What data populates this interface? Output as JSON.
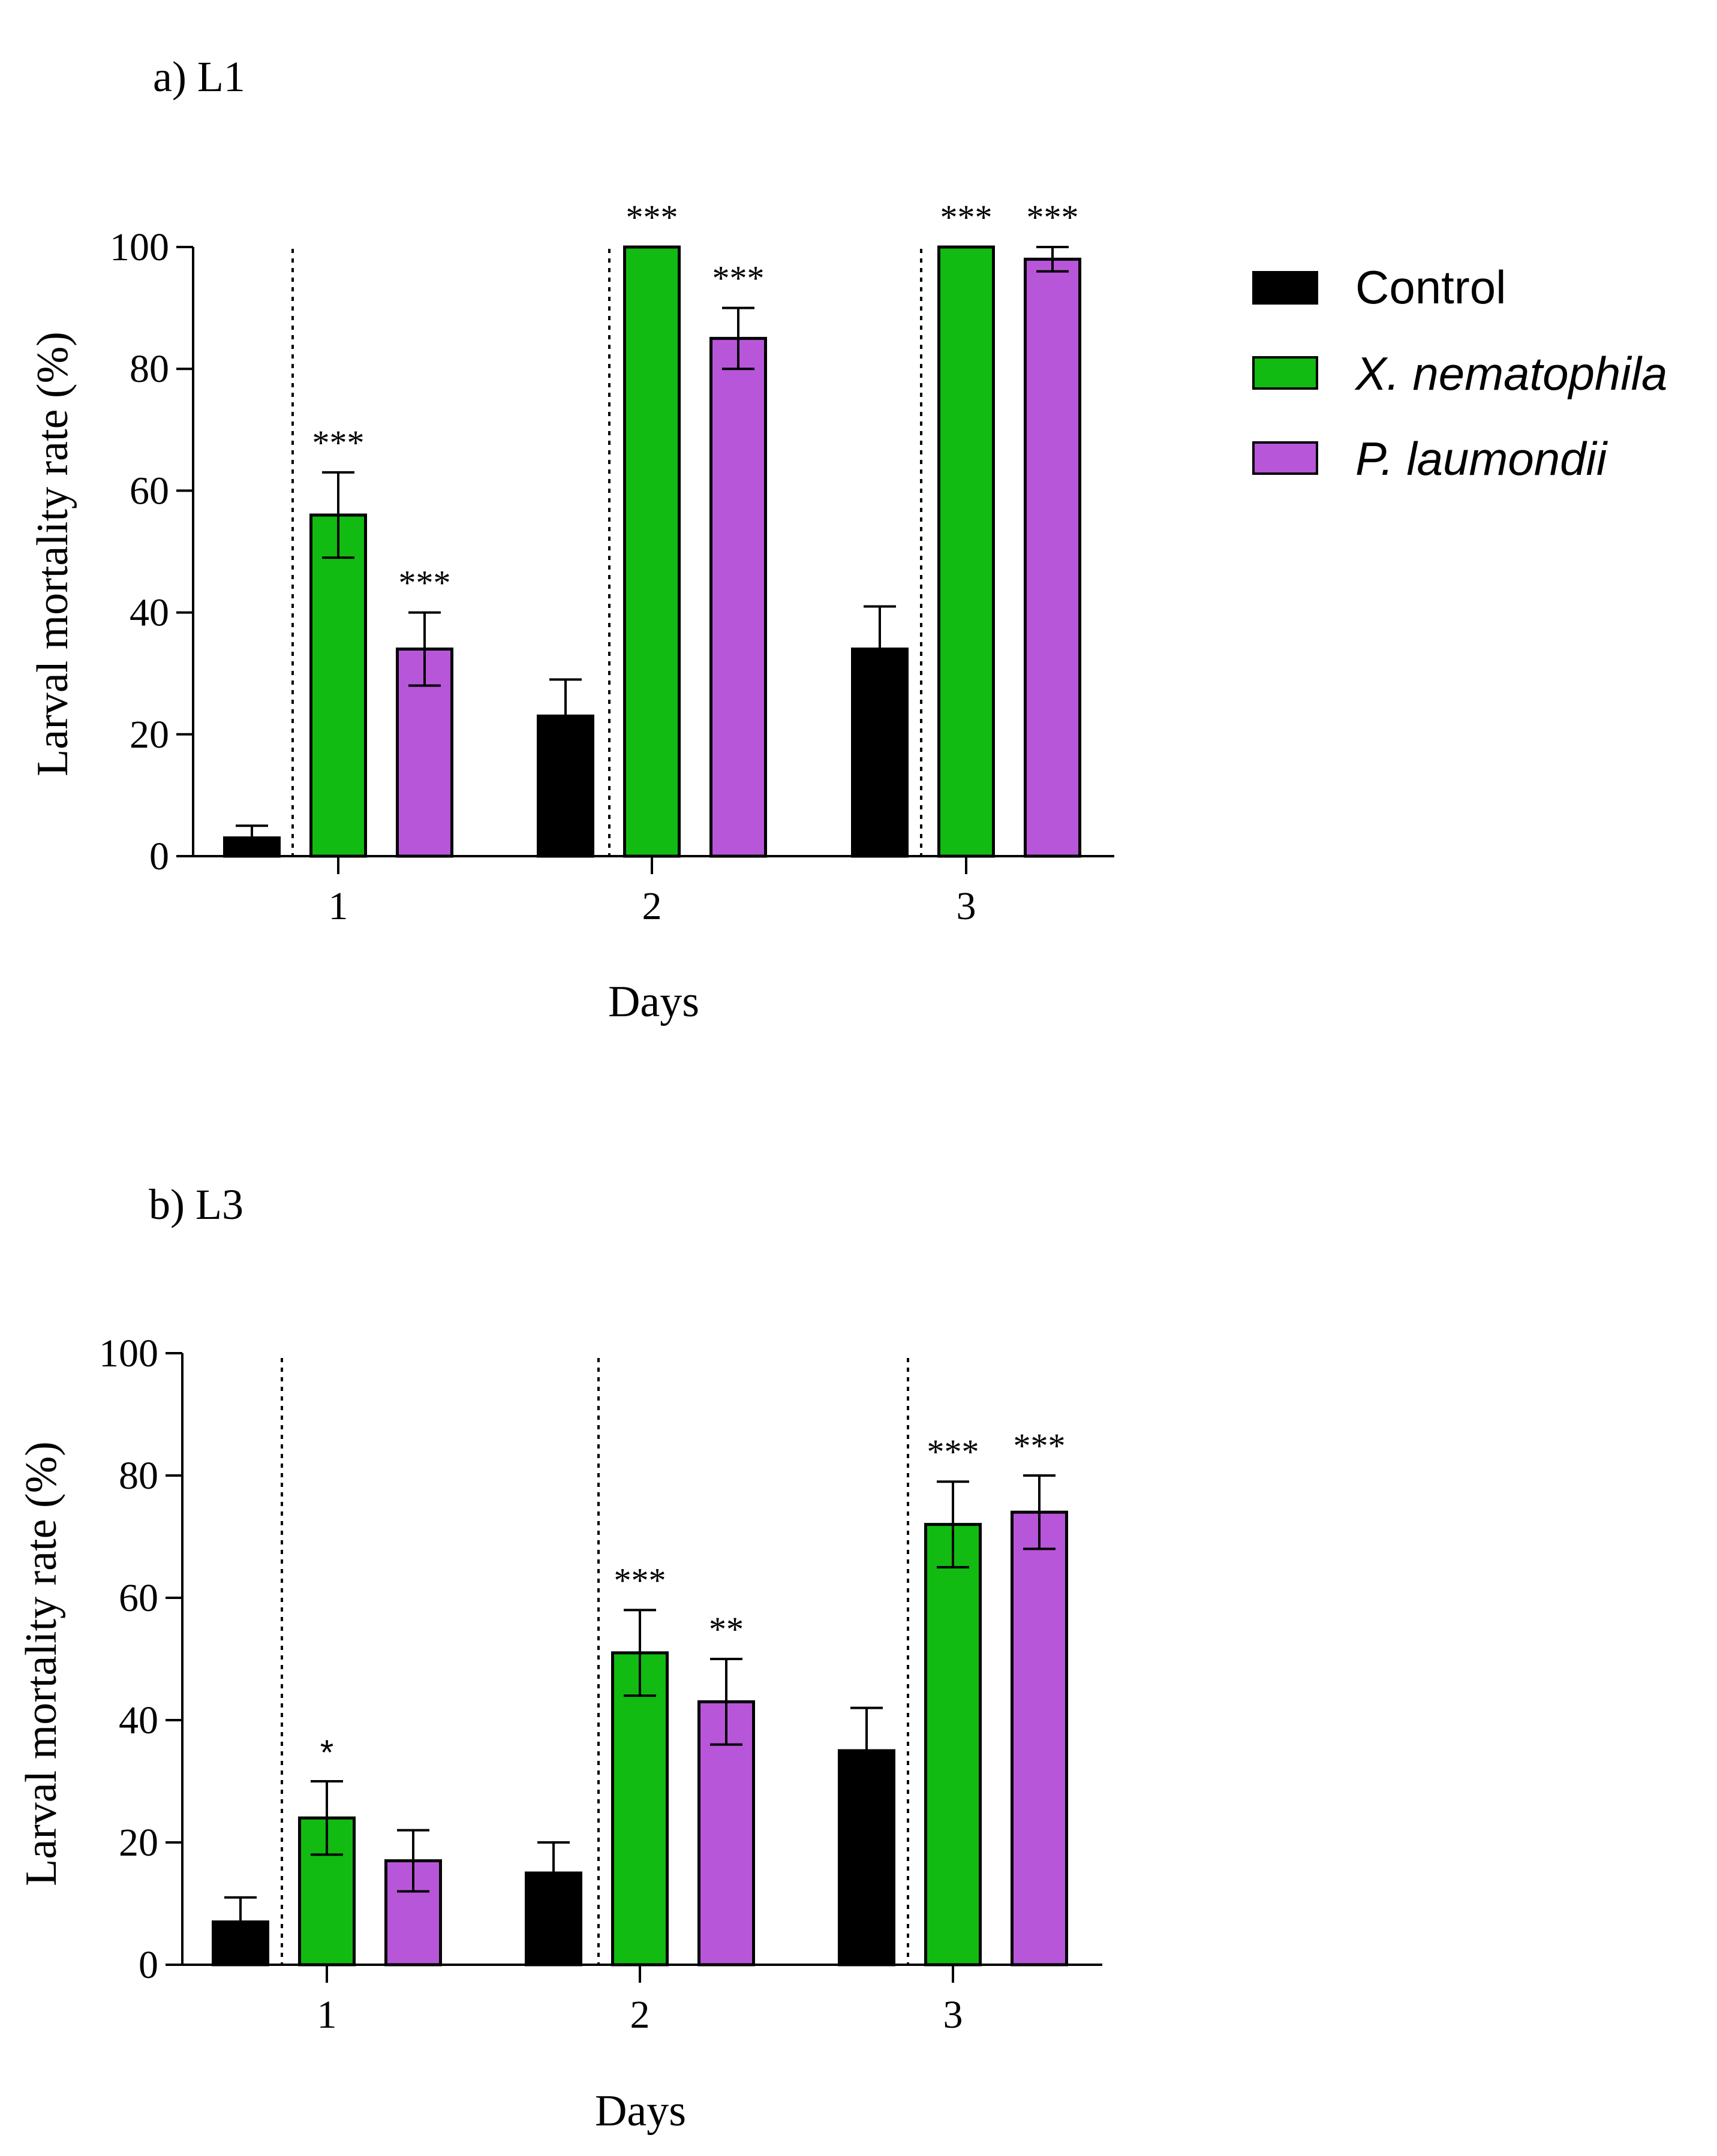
{
  "legend": {
    "items": [
      {
        "label": "Control",
        "color": "#000000",
        "italic": false
      },
      {
        "label": "X. nematophila",
        "color": "#11bb11",
        "italic": true
      },
      {
        "label": "P. laumondii",
        "color": "#b856d9",
        "italic": true
      }
    ]
  },
  "chart_data": [
    {
      "type": "bar",
      "title": "a) L1",
      "xlabel": "Days",
      "ylabel": "Larval mortality rate (%)",
      "ylim": [
        0,
        100
      ],
      "yticks": [
        0,
        20,
        40,
        60,
        80,
        100
      ],
      "categories": [
        "1",
        "2",
        "3"
      ],
      "series": [
        {
          "name": "Control",
          "color": "#000000",
          "values": [
            3,
            23,
            34
          ],
          "errors": [
            2,
            6,
            7
          ],
          "significance": [
            "",
            "",
            ""
          ]
        },
        {
          "name": "X. nematophila",
          "color": "#11bb11",
          "values": [
            56,
            100,
            100
          ],
          "errors": [
            7,
            0,
            0
          ],
          "significance": [
            "***",
            "***",
            "***"
          ]
        },
        {
          "name": "P. laumondii",
          "color": "#b856d9",
          "values": [
            34,
            85,
            98
          ],
          "errors": [
            6,
            5,
            2
          ],
          "significance": [
            "***",
            "***",
            "***"
          ]
        }
      ],
      "separators": "dotted line before each treatment group"
    },
    {
      "type": "bar",
      "title": "b) L3",
      "xlabel": "Days",
      "ylabel": "Larval mortality rate (%)",
      "ylim": [
        0,
        100
      ],
      "yticks": [
        0,
        20,
        40,
        60,
        80,
        100
      ],
      "categories": [
        "1",
        "2",
        "3"
      ],
      "series": [
        {
          "name": "Control",
          "color": "#000000",
          "values": [
            7,
            15,
            35
          ],
          "errors": [
            4,
            5,
            7
          ],
          "significance": [
            "",
            "",
            ""
          ]
        },
        {
          "name": "X. nematophila",
          "color": "#11bb11",
          "values": [
            24,
            51,
            72
          ],
          "errors": [
            6,
            7,
            7
          ],
          "significance": [
            "*",
            "***",
            "***"
          ]
        },
        {
          "name": "P. laumondii",
          "color": "#b856d9",
          "values": [
            17,
            43,
            74
          ],
          "errors": [
            5,
            7,
            6
          ],
          "significance": [
            "",
            "**",
            "***"
          ]
        }
      ],
      "separators": "dotted line before each treatment group"
    }
  ]
}
